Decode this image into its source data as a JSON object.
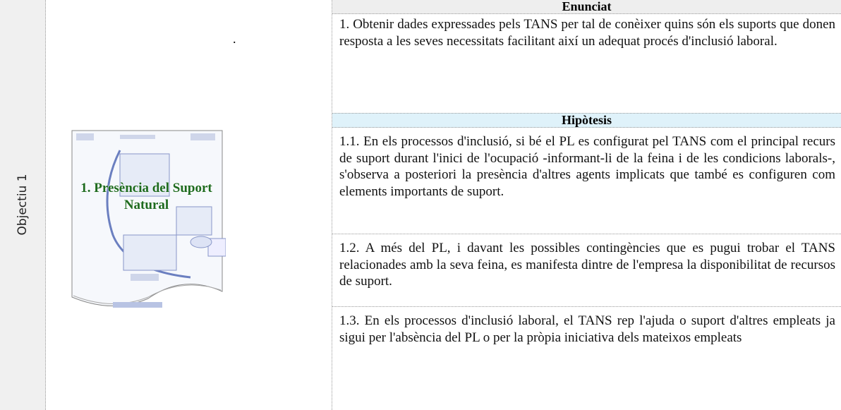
{
  "objective": "Objectiu 1",
  "dot": ".",
  "diagram": {
    "label": "1. Presència del Suport Natural"
  },
  "statement": {
    "header": "Enunciat",
    "text": "1. Obtenir dades expressades pels TANS per tal de conèixer quins són els suports que donen resposta a les seves necessitats facilitant així un adequat procés d'inclusió laboral."
  },
  "hypotheses": {
    "header": "Hipòtesis",
    "items": [
      "1.1. En els processos d'inclusió, si bé el PL es configurat pel TANS com el principal recurs de suport durant l'inici de l'ocupació -informant-li de la feina i de les condicions laborals-, s'observa a posteriori la presència d'altres agents implicats que també es configuren com elements importants de suport.",
      "1.2. A més del PL, i davant les possibles contingències que es pugui trobar el TANS relacionades amb la seva feina, es manifesta dintre de l'empresa la disponibilitat de recursos de suport.",
      "1.3. En els processos d'inclusió laboral, el TANS rep l'ajuda o suport d'altres empleats ja sigui per l'absència del PL o per la pròpia iniciativa dels mateixos empleats"
    ]
  }
}
